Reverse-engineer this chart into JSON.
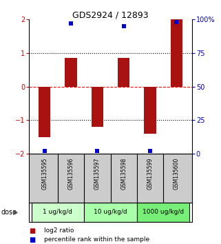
{
  "title": "GDS2924 / 12893",
  "samples": [
    "GSM135595",
    "GSM135596",
    "GSM135597",
    "GSM135598",
    "GSM135599",
    "GSM135600"
  ],
  "log2_ratios": [
    -1.5,
    0.85,
    -1.2,
    0.85,
    -1.4,
    2.0
  ],
  "percentile_ranks": [
    2,
    97,
    2,
    95,
    2,
    98
  ],
  "bar_color": "#AA1111",
  "dot_color": "#0000CC",
  "ylim": [
    -2,
    2
  ],
  "ylim_right": [
    0,
    100
  ],
  "yticks_left": [
    -2,
    -1,
    0,
    1,
    2
  ],
  "yticks_right": [
    0,
    25,
    50,
    75,
    100
  ],
  "yticklabels_right": [
    "0",
    "25",
    "50",
    "75",
    "100%"
  ],
  "hlines_dotted": [
    -1,
    1
  ],
  "hline_dashed": 0,
  "dose_groups": [
    {
      "label": "1 ug/kg/d",
      "samples": [
        0,
        1
      ],
      "color": "#ccffcc"
    },
    {
      "label": "10 ug/kg/d",
      "samples": [
        2,
        3
      ],
      "color": "#aaffaa"
    },
    {
      "label": "1000 ug/kg/d",
      "samples": [
        4,
        5
      ],
      "color": "#77ee77"
    }
  ],
  "dose_label": "dose",
  "legend_red_label": "log2 ratio",
  "legend_blue_label": "percentile rank within the sample",
  "bar_width": 0.45,
  "left_axis_color": "#CC0000",
  "right_axis_color": "#0000BB",
  "background_color": "#ffffff",
  "plot_bg_color": "#ffffff",
  "sample_box_color": "#cccccc",
  "title_fontsize": 9,
  "tick_fontsize": 7,
  "sample_fontsize": 5.5,
  "dose_fontsize": 6.5,
  "legend_fontsize": 6.5
}
